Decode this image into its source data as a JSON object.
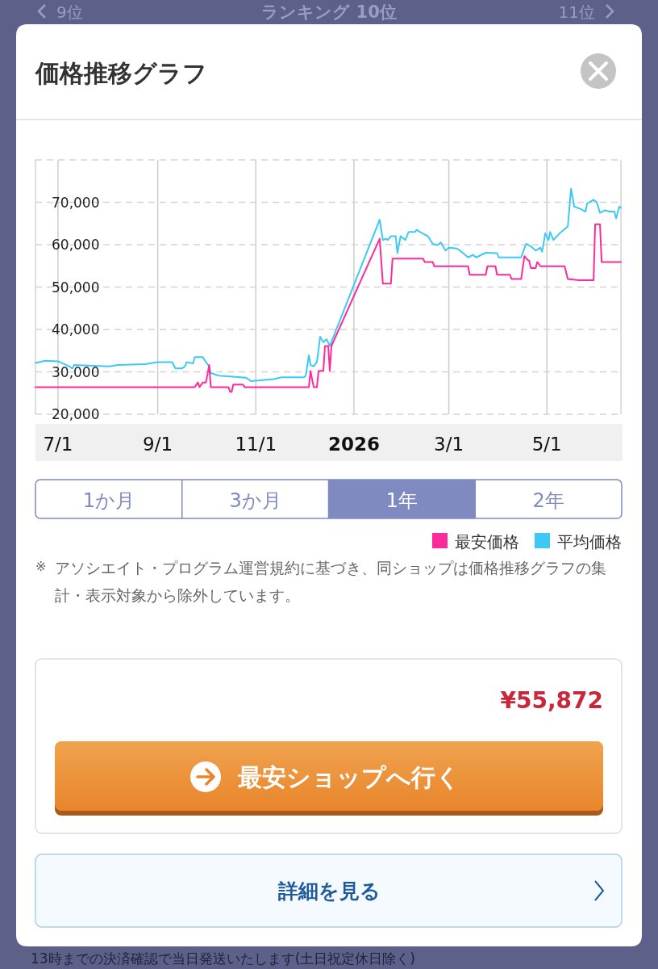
{
  "chart_data": {
    "type": "line",
    "title": "価格推移グラフ",
    "xlim": [
      "2025-06-17",
      "2026-06-16"
    ],
    "xticks": [
      {
        "value": "2025-07-01",
        "label": "7/1"
      },
      {
        "value": "2025-09-01",
        "label": "9/1"
      },
      {
        "value": "2025-11-01",
        "label": "11/1"
      },
      {
        "value": "2026-01-01",
        "label": "2026"
      },
      {
        "value": "2026-03-01",
        "label": "3/1"
      },
      {
        "value": "2026-05-01",
        "label": "5/1"
      }
    ],
    "ylim": [
      20000,
      80000
    ],
    "yticks": [
      {
        "value": 20000,
        "label": "20,000"
      },
      {
        "value": 30000,
        "label": "30,000"
      },
      {
        "value": 40000,
        "label": "40,000"
      },
      {
        "value": 50000,
        "label": "50,000"
      },
      {
        "value": 60000,
        "label": "60,000"
      },
      {
        "value": 70000,
        "label": "70,000"
      },
      {
        "value": 80000,
        "label": null
      }
    ],
    "grid": true,
    "legend": "bottom right",
    "line_style": "solid",
    "marker": "none",
    "series": [
      {
        "name": "最安価格",
        "color": "#ff2a9a",
        "x": [
          "2025-06-17",
          "2025-09-24",
          "2025-09-26",
          "2025-09-27",
          "2025-09-29",
          "2025-10-01",
          "2025-10-03",
          "2025-10-04",
          "2025-10-15",
          "2025-10-16",
          "2025-10-17",
          "2025-10-18",
          "2025-10-24",
          "2025-10-25",
          "2025-12-04",
          "2025-12-05",
          "2025-12-07",
          "2025-12-09",
          "2025-12-10",
          "2025-12-13",
          "2025-12-14",
          "2025-12-16",
          "2025-12-17",
          "2025-12-18",
          "2026-01-17",
          "2026-01-19",
          "2026-01-24",
          "2026-01-25",
          "2026-02-13",
          "2026-02-14",
          "2026-02-19",
          "2026-02-20",
          "2026-03-13",
          "2026-03-14",
          "2026-03-24",
          "2026-03-25",
          "2026-03-30",
          "2026-03-31",
          "2026-04-08",
          "2026-04-09",
          "2026-04-15",
          "2026-04-17",
          "2026-04-19",
          "2026-04-20",
          "2026-04-21",
          "2026-04-24",
          "2026-04-25",
          "2026-04-27",
          "2026-05-12",
          "2026-05-14",
          "2026-05-21",
          "2026-05-30",
          "2026-05-31",
          "2026-06-03",
          "2026-06-04",
          "2026-06-16"
        ],
        "values": [
          26400,
          26400,
          27500,
          26400,
          27500,
          27500,
          31600,
          26400,
          26400,
          25300,
          25300,
          27000,
          27000,
          26400,
          26400,
          30200,
          26400,
          26400,
          30200,
          30300,
          36100,
          36100,
          30300,
          36100,
          61400,
          50800,
          50800,
          56700,
          56700,
          55900,
          55900,
          54900,
          54900,
          52900,
          52900,
          54900,
          54900,
          52900,
          52900,
          51900,
          51900,
          57300,
          56400,
          56200,
          54500,
          54500,
          55900,
          54900,
          54900,
          51900,
          51600,
          51600,
          64800,
          64800,
          55900,
          55900
        ]
      },
      {
        "name": "平均価格",
        "color": "#3ec9f5",
        "x": [
          "2025-06-17",
          "2025-06-23",
          "2025-07-01",
          "2025-07-08",
          "2025-07-10",
          "2025-07-11",
          "2025-08-02",
          "2025-08-07",
          "2025-08-24",
          "2025-09-01",
          "2025-09-10",
          "2025-09-12",
          "2025-09-16",
          "2025-09-18",
          "2025-09-19",
          "2025-09-23",
          "2025-09-24",
          "2025-09-29",
          "2025-10-01",
          "2025-10-03",
          "2025-10-04",
          "2025-10-09",
          "2025-10-16",
          "2025-10-26",
          "2025-10-29",
          "2025-11-12",
          "2025-11-17",
          "2025-12-01",
          "2025-12-02",
          "2025-12-04",
          "2025-12-05",
          "2025-12-07",
          "2025-12-09",
          "2025-12-11",
          "2025-12-13",
          "2025-12-15",
          "2025-12-17",
          "2026-01-17",
          "2026-01-19",
          "2026-01-21",
          "2026-01-22",
          "2026-01-24",
          "2026-01-27",
          "2026-01-28",
          "2026-01-30",
          "2026-02-02",
          "2026-02-04",
          "2026-02-08",
          "2026-02-09",
          "2026-02-12",
          "2026-02-16",
          "2026-02-19",
          "2026-02-22",
          "2026-02-24",
          "2026-02-27",
          "2026-03-01",
          "2026-03-06",
          "2026-03-09",
          "2026-03-13",
          "2026-03-16",
          "2026-03-18",
          "2026-03-24",
          "2026-03-31",
          "2026-04-01",
          "2026-04-08",
          "2026-04-15",
          "2026-04-18",
          "2026-04-21",
          "2026-04-24",
          "2026-04-27",
          "2026-04-28",
          "2026-04-30",
          "2026-05-02",
          "2026-05-03",
          "2026-05-05",
          "2026-05-09",
          "2026-05-13",
          "2026-05-14",
          "2026-05-16",
          "2026-05-18",
          "2026-05-22",
          "2026-05-25",
          "2026-05-26",
          "2026-05-30",
          "2026-06-01",
          "2026-06-03",
          "2026-06-06",
          "2026-06-09",
          "2026-06-12",
          "2026-06-13",
          "2026-06-15",
          "2026-06-16"
        ],
        "values": [
          32100,
          32600,
          32500,
          31300,
          30800,
          31600,
          31300,
          31600,
          31800,
          32300,
          32300,
          30800,
          30800,
          31300,
          32300,
          32000,
          33500,
          33500,
          32300,
          31300,
          29700,
          29100,
          28900,
          28600,
          27800,
          28300,
          28700,
          28700,
          29100,
          33900,
          31600,
          31300,
          32300,
          38300,
          37000,
          37700,
          36100,
          65900,
          61100,
          61400,
          61100,
          62000,
          62000,
          58000,
          62000,
          61100,
          63000,
          63000,
          63500,
          62800,
          62000,
          60200,
          59900,
          60500,
          58600,
          59300,
          59100,
          58300,
          57000,
          57600,
          57000,
          58100,
          58000,
          57000,
          57000,
          57000,
          60200,
          59600,
          58600,
          59300,
          58300,
          62700,
          61100,
          63000,
          61100,
          62700,
          64000,
          64300,
          73200,
          69000,
          68400,
          67800,
          69700,
          70600,
          70000,
          67500,
          68100,
          67800,
          67800,
          66200,
          69000,
          68700
        ]
      }
    ],
    "annotations": [
      "9位",
      "ランキング 10位",
      "11位",
      "1か月",
      "3か月",
      "1年",
      "2年",
      "※",
      "アソシエイト・プログラム運営規約に基づき、同ショップは価格推移グラフの集計・表示対象から除外しています。",
      "¥55,872",
      "最安ショップへ行く",
      "詳細を見る",
      "13時までの決済確認で当日発送いたします(土日祝定休日除く)"
    ]
  }
}
